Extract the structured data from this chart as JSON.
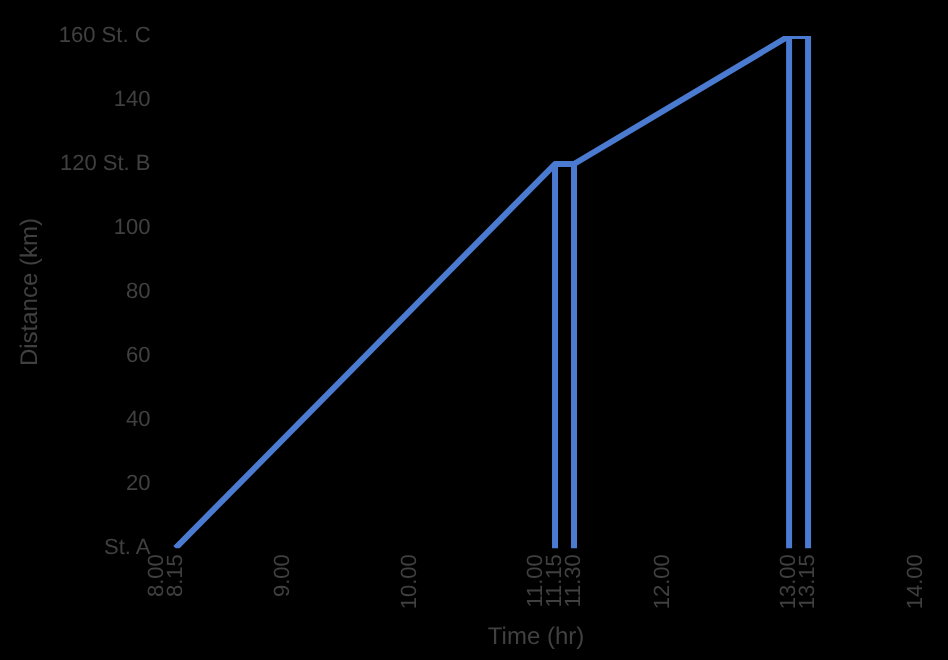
{
  "chart_data": {
    "type": "line",
    "xlabel": "Time (hr)",
    "ylabel": "Distance (km)",
    "xlim": [
      8,
      14
    ],
    "xticks": [
      {
        "value": 8,
        "label": "8.00"
      },
      8.15,
      {
        "value": 9,
        "label": "9.00"
      },
      {
        "value": 10,
        "label": "10.00"
      },
      {
        "value": 11,
        "label": "11.00"
      },
      11.15,
      {
        "value": 11.3,
        "label": "11.30"
      },
      {
        "value": 12,
        "label": "12.00"
      },
      {
        "value": 13,
        "label": "13.00"
      },
      13.15,
      {
        "value": 14,
        "label": "14.00"
      }
    ],
    "ylim": [
      0,
      160
    ],
    "yticks": [
      {
        "value": 0,
        "label": "St. A"
      },
      20,
      40,
      60,
      80,
      100,
      {
        "value": 120,
        "label": "120 St. B"
      },
      140,
      {
        "value": 160,
        "label": "160 St. C"
      }
    ],
    "series": [
      {
        "color": "#4a7bd0",
        "x": [
          8.15,
          11.15,
          11.3,
          13,
          13.15
        ],
        "values": [
          0,
          120,
          120,
          160,
          160
        ]
      }
    ],
    "ref_lines": [
      {
        "axis": "x",
        "value": 11.15,
        "color": "#4a7bd0"
      },
      {
        "axis": "x",
        "value": 11.3,
        "color": "#4a7bd0"
      },
      {
        "axis": "x",
        "value": 13,
        "color": "#4a7bd0"
      },
      {
        "axis": "x",
        "value": 13.15,
        "color": "#4a7bd0"
      }
    ],
    "grid": false,
    "legend": false,
    "marker": "none",
    "line_style": "solid"
  }
}
